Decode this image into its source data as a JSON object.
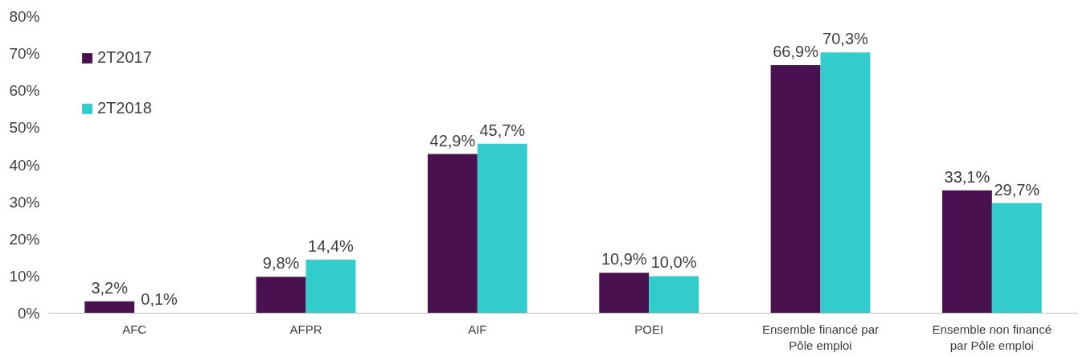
{
  "chart_data": {
    "type": "bar",
    "categories": [
      "AFC",
      "AFPR",
      "AIF",
      "POEI",
      "Ensemble financé par Pôle emploi",
      "Ensemble non financé par Pôle emploi"
    ],
    "series": [
      {
        "name": "2T2017",
        "color": "#4a1150",
        "values": [
          3.2,
          9.8,
          42.9,
          10.9,
          66.9,
          33.1
        ],
        "value_labels": [
          "3,2%",
          "9,8%",
          "42,9%",
          "10,9%",
          "66,9%",
          "33,1%"
        ]
      },
      {
        "name": "2T2018",
        "color": "#33cccc",
        "values": [
          0.1,
          14.4,
          45.7,
          10.0,
          70.3,
          29.7
        ],
        "value_labels": [
          "0,1%",
          "14,4%",
          "45,7%",
          "10,0%",
          "70,3%",
          "29,7%"
        ]
      }
    ],
    "ylim": [
      0,
      80
    ],
    "yticks": [
      {
        "value": 0,
        "label": "0%"
      },
      {
        "value": 10,
        "label": "10%"
      },
      {
        "value": 20,
        "label": "20%"
      },
      {
        "value": 30,
        "label": "30%"
      },
      {
        "value": 40,
        "label": "40%"
      },
      {
        "value": 50,
        "label": "50%"
      },
      {
        "value": 60,
        "label": "60%"
      },
      {
        "value": 70,
        "label": "70%"
      },
      {
        "value": 80,
        "label": "80%"
      }
    ],
    "grid": false,
    "legend": "top left"
  }
}
